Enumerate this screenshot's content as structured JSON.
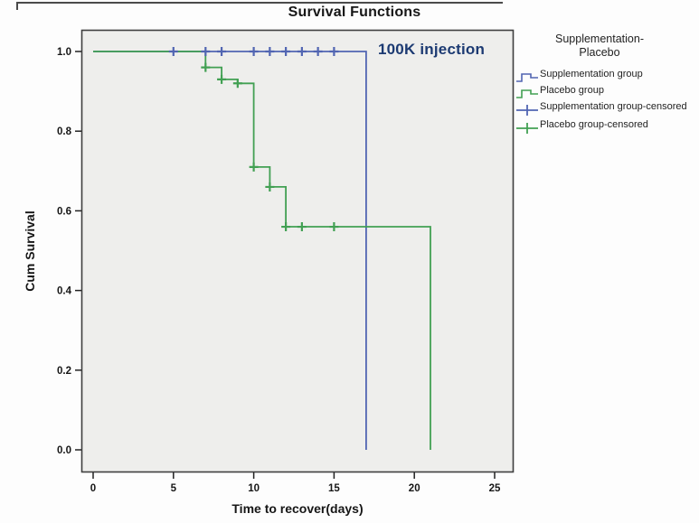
{
  "chart_data": {
    "type": "line",
    "subtype": "kaplan-meier-step",
    "title": "Survival Functions",
    "xlabel": "Time to recover(days)",
    "ylabel": "Cum Survival",
    "x_ticks": [
      "0",
      "5",
      "10",
      "15",
      "20",
      "25"
    ],
    "y_ticks": [
      "0.0",
      "0.2",
      "0.4",
      "0.6",
      "0.8",
      "1.0"
    ],
    "xlim": [
      -0.75,
      26.2
    ],
    "ylim": [
      0.0,
      1.0
    ],
    "grid": false,
    "plot_bg": "#eeeeec",
    "annotation": {
      "text": "100K injection",
      "color": "#1c3a72",
      "x": 17.8,
      "y": 0.98
    },
    "series": [
      {
        "name": "Supplementation group",
        "color": "#5165b2",
        "steps": [
          [
            0,
            1.0
          ],
          [
            17,
            1.0
          ],
          [
            17,
            0.0
          ]
        ],
        "censored": [
          [
            5,
            1.0
          ],
          [
            7,
            1.0
          ],
          [
            8,
            1.0
          ],
          [
            10,
            1.0
          ],
          [
            11,
            1.0
          ],
          [
            12,
            1.0
          ],
          [
            13,
            1.0
          ],
          [
            14,
            1.0
          ],
          [
            15,
            1.0
          ]
        ]
      },
      {
        "name": "Placebo group",
        "color": "#42a053",
        "steps": [
          [
            0,
            1.0
          ],
          [
            7,
            1.0
          ],
          [
            7,
            0.96
          ],
          [
            8,
            0.96
          ],
          [
            8,
            0.93
          ],
          [
            9,
            0.93
          ],
          [
            9,
            0.92
          ],
          [
            10,
            0.92
          ],
          [
            10,
            0.71
          ],
          [
            11,
            0.71
          ],
          [
            11,
            0.66
          ],
          [
            12,
            0.66
          ],
          [
            12,
            0.56
          ],
          [
            21,
            0.56
          ],
          [
            21,
            0.0
          ]
        ],
        "censored": [
          [
            7,
            0.96
          ],
          [
            8,
            0.93
          ],
          [
            9,
            0.92
          ],
          [
            10,
            0.71
          ],
          [
            11,
            0.66
          ],
          [
            12,
            0.56
          ],
          [
            13,
            0.56
          ],
          [
            15,
            0.56
          ]
        ]
      }
    ],
    "legend": {
      "position": "right",
      "title_lines": [
        "Supplementation-",
        "Placebo"
      ],
      "entries": [
        {
          "label": "Supplementation group",
          "symbol": "step-line",
          "color": "#5165b2"
        },
        {
          "label": "Placebo group",
          "symbol": "step-line",
          "color": "#42a053"
        },
        {
          "label": "Supplementation group-censored",
          "symbol": "plus",
          "color": "#5165b2"
        },
        {
          "label": "Placebo group-censored",
          "symbol": "plus",
          "color": "#42a053"
        }
      ]
    }
  }
}
